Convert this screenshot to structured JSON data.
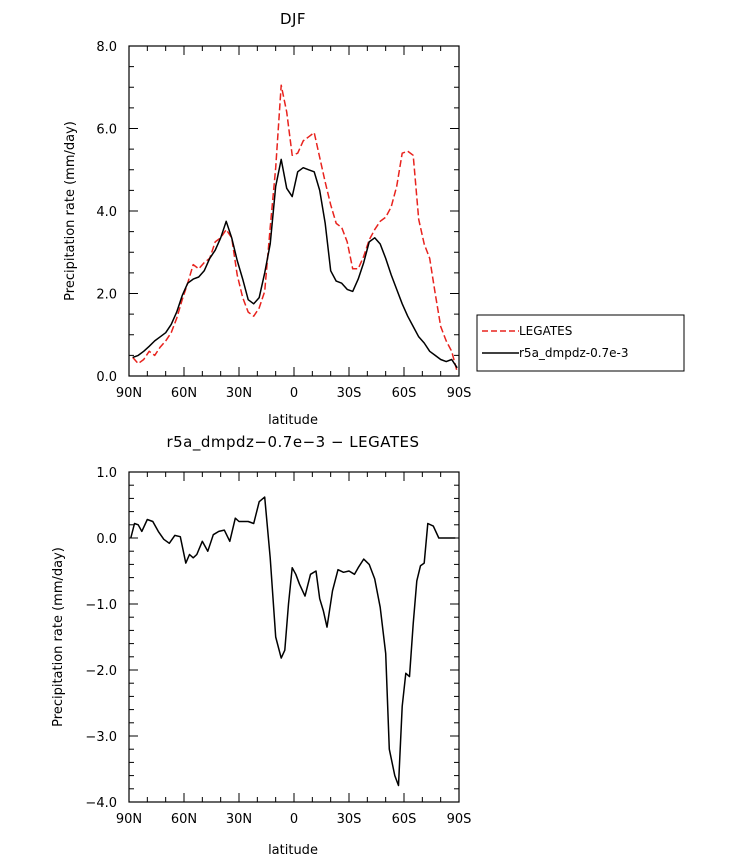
{
  "chart_data": [
    {
      "type": "line",
      "title": "DJF",
      "xlabel": "latitude",
      "ylabel": "Precipitation rate (mm/day)",
      "xlim": [
        90,
        -90
      ],
      "ylim": [
        0,
        8
      ],
      "xticks": [
        {
          "v": 90,
          "label": "90N"
        },
        {
          "v": 60,
          "label": "60N"
        },
        {
          "v": 30,
          "label": "30N"
        },
        {
          "v": 0,
          "label": "0"
        },
        {
          "v": -30,
          "label": "30S"
        },
        {
          "v": -60,
          "label": "60S"
        },
        {
          "v": -90,
          "label": "90S"
        }
      ],
      "yticks": [
        {
          "v": 0,
          "label": "0.0"
        },
        {
          "v": 2,
          "label": "2.0"
        },
        {
          "v": 4,
          "label": "4.0"
        },
        {
          "v": 6,
          "label": "6.0"
        },
        {
          "v": 8,
          "label": "8.0"
        }
      ],
      "legend_position": "right",
      "series": [
        {
          "name": "LEGATES",
          "color": "#e8231e",
          "dash": "dashed",
          "x": [
            88,
            85,
            82,
            79,
            76,
            73,
            70,
            67,
            64,
            61,
            58,
            55,
            52,
            49,
            46,
            43,
            40,
            37,
            34,
            31,
            28,
            25,
            22,
            19,
            16,
            13,
            10,
            7,
            4,
            1,
            -2,
            -5,
            -8,
            -11,
            -14,
            -17,
            -20,
            -23,
            -26,
            -29,
            -32,
            -35,
            -38,
            -41,
            -44,
            -47,
            -50,
            -53,
            -56,
            -59,
            -62,
            -65,
            -68,
            -71,
            -74,
            -77,
            -80,
            -83,
            -86,
            -89
          ],
          "y": [
            0.45,
            0.3,
            0.4,
            0.6,
            0.5,
            0.7,
            0.85,
            1.05,
            1.4,
            1.85,
            2.25,
            2.7,
            2.6,
            2.75,
            2.85,
            3.25,
            3.35,
            3.55,
            3.35,
            2.45,
            1.9,
            1.55,
            1.45,
            1.65,
            2.05,
            3.6,
            5.05,
            7.05,
            6.4,
            5.35,
            5.4,
            5.7,
            5.8,
            5.9,
            5.3,
            4.7,
            4.15,
            3.7,
            3.6,
            3.25,
            2.6,
            2.6,
            2.9,
            3.3,
            3.55,
            3.75,
            3.85,
            4.1,
            4.6,
            5.4,
            5.45,
            5.35,
            3.8,
            3.2,
            2.85,
            2.0,
            1.2,
            0.85,
            0.6,
            0.1
          ]
        },
        {
          "name": "r5a_dmpdz-0.7e-3",
          "color": "#000000",
          "dash": "solid",
          "x": [
            88,
            85,
            82,
            79,
            76,
            73,
            70,
            67,
            64,
            61,
            58,
            55,
            52,
            49,
            46,
            43,
            40,
            37,
            34,
            31,
            28,
            25,
            22,
            19,
            16,
            13,
            10,
            7,
            4,
            1,
            -2,
            -5,
            -8,
            -11,
            -14,
            -17,
            -20,
            -23,
            -26,
            -29,
            -32,
            -35,
            -38,
            -41,
            -44,
            -47,
            -50,
            -53,
            -56,
            -59,
            -62,
            -65,
            -68,
            -71,
            -74,
            -77,
            -80,
            -83,
            -86,
            -89
          ],
          "y": [
            0.45,
            0.5,
            0.6,
            0.72,
            0.85,
            0.95,
            1.05,
            1.25,
            1.55,
            1.95,
            2.25,
            2.35,
            2.4,
            2.55,
            2.85,
            3.05,
            3.35,
            3.75,
            3.35,
            2.8,
            2.35,
            1.85,
            1.75,
            1.9,
            2.5,
            3.2,
            4.6,
            5.25,
            4.55,
            4.35,
            4.95,
            5.05,
            5.0,
            4.95,
            4.5,
            3.7,
            2.55,
            2.3,
            2.25,
            2.1,
            2.05,
            2.35,
            2.75,
            3.25,
            3.35,
            3.2,
            2.85,
            2.45,
            2.1,
            1.75,
            1.45,
            1.2,
            0.95,
            0.8,
            0.6,
            0.5,
            0.4,
            0.35,
            0.4,
            0.2
          ]
        }
      ]
    },
    {
      "type": "line",
      "title": "r5a_dmpdz−0.7e−3 − LEGATES",
      "xlabel": "latitude",
      "ylabel": "Precipitation rate (mm/day)",
      "xlim": [
        90,
        -90
      ],
      "ylim": [
        -4,
        1
      ],
      "xticks": [
        {
          "v": 90,
          "label": "90N"
        },
        {
          "v": 60,
          "label": "60N"
        },
        {
          "v": 30,
          "label": "30N"
        },
        {
          "v": 0,
          "label": "0"
        },
        {
          "v": -30,
          "label": "30S"
        },
        {
          "v": -60,
          "label": "60S"
        },
        {
          "v": -90,
          "label": "90S"
        }
      ],
      "yticks": [
        {
          "v": 1,
          "label": "1.0"
        },
        {
          "v": 0,
          "label": "0.0"
        },
        {
          "v": -1,
          "label": "−1.0"
        },
        {
          "v": -2,
          "label": "−2.0"
        },
        {
          "v": -3,
          "label": "−3.0"
        },
        {
          "v": -4,
          "label": "−4.0"
        }
      ],
      "series": [
        {
          "color": "#000000",
          "dash": "solid",
          "x": [
            89,
            87,
            85,
            83,
            80,
            77,
            74,
            71,
            68,
            65,
            62,
            59,
            57,
            55,
            53,
            50,
            47,
            44,
            41,
            38,
            35,
            32,
            30,
            28,
            25,
            22,
            19,
            16,
            13,
            10,
            7,
            5,
            3,
            1,
            -1,
            -3,
            -6,
            -9,
            -12,
            -14,
            -16,
            -18,
            -21,
            -24,
            -27,
            -30,
            -33,
            -35,
            -38,
            -41,
            -44,
            -47,
            -50,
            -52,
            -55,
            -57,
            -59,
            -61,
            -63,
            -65,
            -67,
            -69,
            -71,
            -73,
            -76,
            -79,
            -81,
            -83,
            -86,
            -88
          ],
          "y": [
            0.0,
            0.22,
            0.2,
            0.1,
            0.28,
            0.25,
            0.1,
            -0.02,
            -0.08,
            0.04,
            0.02,
            -0.38,
            -0.25,
            -0.3,
            -0.25,
            -0.05,
            -0.2,
            0.05,
            0.1,
            0.12,
            -0.05,
            0.3,
            0.25,
            0.25,
            0.25,
            0.22,
            0.55,
            0.62,
            -0.3,
            -1.5,
            -1.82,
            -1.7,
            -1.0,
            -0.45,
            -0.55,
            -0.7,
            -0.88,
            -0.55,
            -0.5,
            -0.92,
            -1.1,
            -1.35,
            -0.8,
            -0.48,
            -0.52,
            -0.5,
            -0.55,
            -0.45,
            -0.32,
            -0.4,
            -0.62,
            -1.05,
            -1.75,
            -3.2,
            -3.6,
            -3.75,
            -2.55,
            -2.05,
            -2.1,
            -1.3,
            -0.65,
            -0.42,
            -0.38,
            0.22,
            0.18,
            0.0,
            0.0,
            0.0,
            0.0,
            0.0
          ]
        }
      ]
    }
  ]
}
